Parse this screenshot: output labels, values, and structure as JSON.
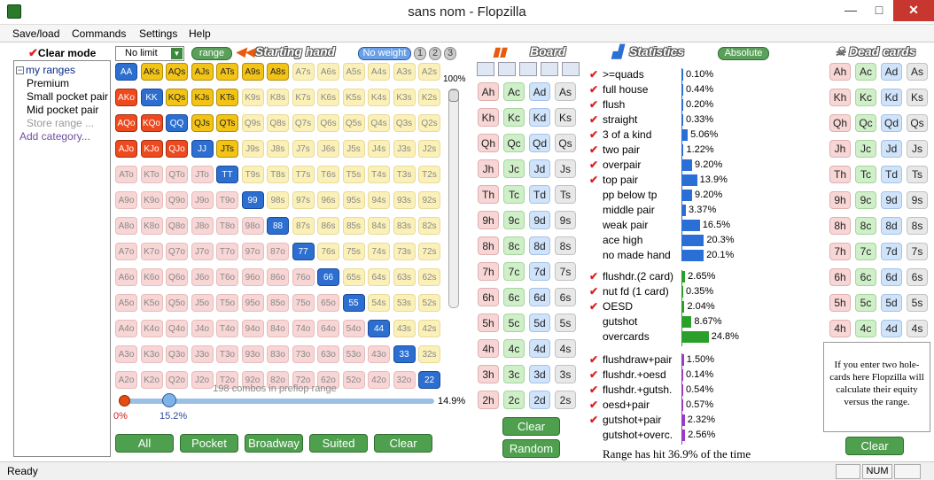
{
  "window": {
    "title": "sans nom - Flopzilla",
    "minimize": "—",
    "maximize": "□",
    "close": "✕"
  },
  "menu": {
    "items": [
      "Save/load",
      "Commands",
      "Settings",
      "Help"
    ]
  },
  "left_panel": {
    "clear_mode_label": "Clear mode",
    "tree": {
      "root": "my ranges",
      "items": [
        "Premium",
        "Small pocket pair",
        "Mid pocket pair"
      ],
      "store_range": "Store range ...",
      "add_category": "Add category..."
    }
  },
  "toolbar": {
    "limit_select": "No limit",
    "range_button": "range",
    "starting_hand_header": "Starting hand",
    "no_weight_button": "No weight",
    "weight_buttons": [
      "1",
      "2",
      "3"
    ]
  },
  "hand_matrix": {
    "ranks": [
      "A",
      "K",
      "Q",
      "J",
      "T",
      "9",
      "8",
      "7",
      "6",
      "5",
      "4",
      "3",
      "2"
    ],
    "selected_cells": [
      "AA",
      "AKs",
      "AQs",
      "AJs",
      "ATs",
      "A9s",
      "A8s",
      "AKo",
      "KK",
      "KQs",
      "KJs",
      "KTs",
      "AQo",
      "KQo",
      "QQ",
      "QJs",
      "QTs",
      "AJo",
      "KJo",
      "QJo",
      "JJ",
      "JTs",
      "TT",
      "99",
      "88",
      "77",
      "66",
      "55",
      "44",
      "33",
      "22"
    ],
    "vertical_slider_label": "100%",
    "combos_label": "198 combos in preflop range",
    "hslider_left": "0%",
    "hslider_mid": "15.2%",
    "hslider_right": "14.9%"
  },
  "bottom_buttons": [
    "All",
    "Pocket",
    "Broadway",
    "Suited",
    "Clear"
  ],
  "board": {
    "header": "Board",
    "ranks": [
      "A",
      "K",
      "Q",
      "J",
      "T",
      "9",
      "8",
      "7",
      "6",
      "5",
      "4",
      "3",
      "2"
    ],
    "suits": [
      "h",
      "c",
      "d",
      "s"
    ],
    "clear_button": "Clear",
    "random_button": "Random"
  },
  "statistics": {
    "header": "Statistics",
    "absolute_button": "Absolute",
    "made_hands": [
      {
        "label": ">=quads",
        "value": "0.10%",
        "pct": 0.1,
        "checked": true
      },
      {
        "label": "full house",
        "value": "0.44%",
        "pct": 0.44,
        "checked": true
      },
      {
        "label": "flush",
        "value": "0.20%",
        "pct": 0.2,
        "checked": true
      },
      {
        "label": "straight",
        "value": "0.33%",
        "pct": 0.33,
        "checked": true
      },
      {
        "label": "3 of a kind",
        "value": "5.06%",
        "pct": 5.06,
        "checked": true
      },
      {
        "label": "two pair",
        "value": "1.22%",
        "pct": 1.22,
        "checked": true
      },
      {
        "label": "overpair",
        "value": "9.20%",
        "pct": 9.2,
        "checked": true
      },
      {
        "label": "top pair",
        "value": "13.9%",
        "pct": 13.9,
        "checked": true
      },
      {
        "label": "pp below tp",
        "value": "9.20%",
        "pct": 9.2,
        "checked": false
      },
      {
        "label": "middle pair",
        "value": "3.37%",
        "pct": 3.37,
        "checked": false
      },
      {
        "label": "weak pair",
        "value": "16.5%",
        "pct": 16.5,
        "checked": false
      },
      {
        "label": "ace high",
        "value": "20.3%",
        "pct": 20.3,
        "checked": false
      },
      {
        "label": "no made hand",
        "value": "20.1%",
        "pct": 20.1,
        "checked": false
      }
    ],
    "draws": [
      {
        "label": "flushdr.(2 card)",
        "value": "2.65%",
        "pct": 2.65,
        "checked": true
      },
      {
        "label": "nut fd (1 card)",
        "value": "0.35%",
        "pct": 0.35,
        "checked": true
      },
      {
        "label": "OESD",
        "value": "2.04%",
        "pct": 2.04,
        "checked": true
      },
      {
        "label": "gutshot",
        "value": "8.67%",
        "pct": 8.67,
        "checked": false
      },
      {
        "label": "overcards",
        "value": "24.8%",
        "pct": 24.8,
        "checked": false
      }
    ],
    "combo_draws": [
      {
        "label": "flushdraw+pair",
        "value": "1.50%",
        "pct": 1.5,
        "checked": true
      },
      {
        "label": "flushdr.+oesd",
        "value": "0.14%",
        "pct": 0.14,
        "checked": true
      },
      {
        "label": "flushdr.+gutsh.",
        "value": "0.54%",
        "pct": 0.54,
        "checked": true
      },
      {
        "label": "oesd+pair",
        "value": "0.57%",
        "pct": 0.57,
        "checked": true
      },
      {
        "label": "gutshot+pair",
        "value": "2.32%",
        "pct": 2.32,
        "checked": true
      },
      {
        "label": "gutshot+overc.",
        "value": "2.56%",
        "pct": 2.56,
        "checked": false
      }
    ],
    "range_hit": "Range has hit 36.9% of the time"
  },
  "dead_cards": {
    "header": "Dead cards",
    "note": "If you enter two hole-cards here Flopzilla will calculate their equity versus the range.",
    "clear_button": "Clear"
  },
  "status": {
    "ready": "Ready",
    "num": "NUM"
  },
  "colors": {
    "made_bar": "#2a6fd6",
    "draw_bar": "#2aa02a",
    "combo_bar": "#9a3ac6",
    "green_button": "#4ea04e"
  }
}
